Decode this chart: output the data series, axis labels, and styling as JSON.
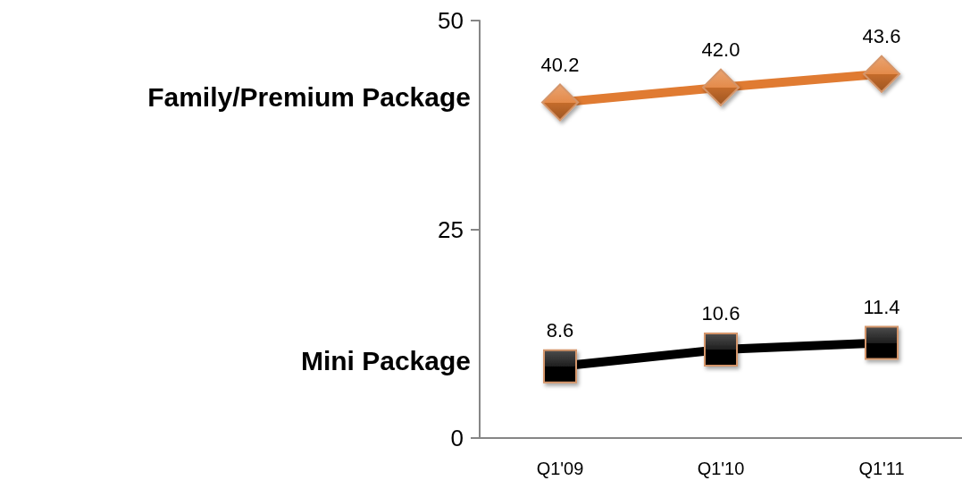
{
  "chart_data": {
    "type": "line",
    "categories": [
      "Q1'09",
      "Q1'10",
      "Q1'11"
    ],
    "series": [
      {
        "name": "Family/Premium Package",
        "color": "#e07b32",
        "marker": "diamond",
        "values": [
          40.2,
          42.0,
          43.6
        ],
        "value_labels": [
          "40.2",
          "42.0",
          "43.6"
        ]
      },
      {
        "name": "Mini Package",
        "color": "#000000",
        "marker": "square",
        "values": [
          8.6,
          10.6,
          11.4
        ],
        "value_labels": [
          "8.6",
          "10.6",
          "11.4"
        ]
      }
    ],
    "ylim": [
      0,
      50
    ],
    "yticks": [
      0,
      25,
      50
    ],
    "grid": false,
    "legend": false,
    "line_style": "solid"
  }
}
